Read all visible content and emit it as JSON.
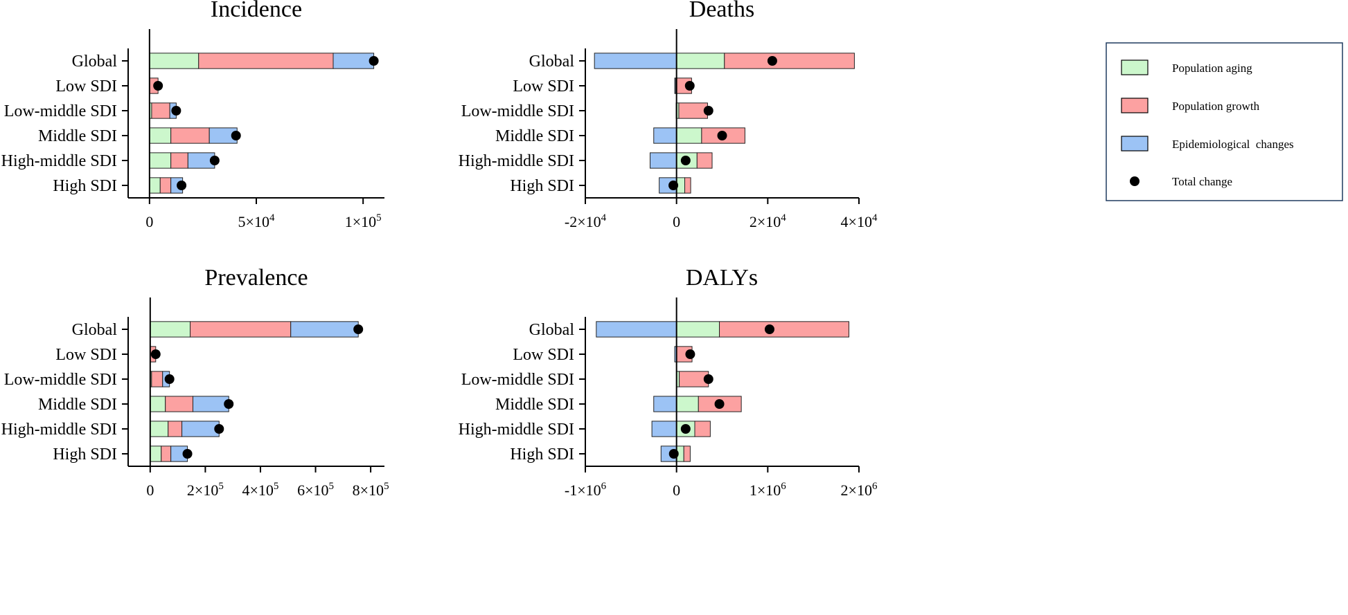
{
  "legend": {
    "items": [
      {
        "label": "Population aging",
        "color": "#ccf7cc",
        "kind": "box"
      },
      {
        "label": "Population growth",
        "color": "#fca1a1",
        "kind": "box"
      },
      {
        "label": "Epidemiological  changes",
        "color": "#9cc3f5",
        "kind": "box"
      },
      {
        "label": "Total change",
        "color": "#000000",
        "kind": "dot"
      }
    ]
  },
  "chart_data": [
    {
      "type": "bar",
      "stacked": true,
      "orientation": "horizontal",
      "title": "Incidence",
      "categories": [
        "Global",
        "Low SDI",
        "Low-middle SDI",
        "Middle SDI",
        "High-middle SDI",
        "High SDI"
      ],
      "series": [
        {
          "name": "Population aging",
          "values": [
            23000,
            0,
            1000,
            10000,
            10000,
            5000
          ]
        },
        {
          "name": "Population growth",
          "values": [
            63000,
            4000,
            8500,
            18000,
            8000,
            5000
          ]
        },
        {
          "name": "Epidemiological  changes",
          "values": [
            19000,
            0,
            3000,
            13000,
            12500,
            5500
          ]
        }
      ],
      "total": [
        105000,
        4000,
        12500,
        40500,
        30500,
        15000
      ],
      "xlim": [
        -10000,
        110000
      ],
      "ticks": [
        {
          "value": 0,
          "base": "0",
          "exp": ""
        },
        {
          "value": 50000,
          "base": "5×10",
          "exp": "4"
        },
        {
          "value": 100000,
          "base": "1×10",
          "exp": "5"
        }
      ]
    },
    {
      "type": "bar",
      "stacked": true,
      "orientation": "horizontal",
      "title": "Deaths",
      "categories": [
        "Global",
        "Low SDI",
        "Low-middle SDI",
        "Middle SDI",
        "High-middle SDI",
        "High SDI"
      ],
      "series": [
        {
          "name": "Population aging",
          "values": [
            10500,
            -200,
            500,
            5500,
            4500,
            1800
          ]
        },
        {
          "name": "Population growth",
          "values": [
            28500,
            3300,
            6300,
            9500,
            3300,
            1300
          ]
        },
        {
          "name": "Epidemiological  changes",
          "values": [
            -18000,
            -200,
            -100,
            -5000,
            -5800,
            -3800
          ]
        }
      ],
      "total": [
        21000,
        2900,
        7000,
        10000,
        2000,
        -700
      ],
      "xlim": [
        -20000,
        40000
      ],
      "ticks": [
        {
          "value": -20000,
          "base": "-2×10",
          "exp": "4"
        },
        {
          "value": 0,
          "base": "0",
          "exp": ""
        },
        {
          "value": 20000,
          "base": "2×10",
          "exp": "4"
        },
        {
          "value": 40000,
          "base": "4×10",
          "exp": "4"
        }
      ]
    },
    {
      "type": "bar",
      "stacked": true,
      "orientation": "horizontal",
      "title": "Prevalence",
      "categories": [
        "Global",
        "Low SDI",
        "Low-middle SDI",
        "Middle SDI",
        "High-middle SDI",
        "High SDI"
      ],
      "series": [
        {
          "name": "Population aging",
          "values": [
            145000,
            0,
            5000,
            55000,
            65000,
            40000
          ]
        },
        {
          "name": "Population growth",
          "values": [
            365000,
            20000,
            40000,
            100000,
            50000,
            35000
          ]
        },
        {
          "name": "Epidemiological  changes",
          "values": [
            245000,
            0,
            25000,
            130000,
            135000,
            60000
          ]
        }
      ],
      "total": [
        755000,
        20000,
        70000,
        285000,
        250000,
        135000
      ],
      "xlim": [
        -80000,
        850000
      ],
      "ticks": [
        {
          "value": 0,
          "base": "0",
          "exp": ""
        },
        {
          "value": 200000,
          "base": "2×10",
          "exp": "5"
        },
        {
          "value": 400000,
          "base": "4×10",
          "exp": "5"
        },
        {
          "value": 600000,
          "base": "6×10",
          "exp": "5"
        },
        {
          "value": 800000,
          "base": "8×10",
          "exp": "5"
        }
      ]
    },
    {
      "type": "bar",
      "stacked": true,
      "orientation": "horizontal",
      "title": "DALYs",
      "categories": [
        "Global",
        "Low SDI",
        "Low-middle SDI",
        "Middle SDI",
        "High-middle SDI",
        "High SDI"
      ],
      "series": [
        {
          "name": "Population aging",
          "values": [
            470000,
            0,
            30000,
            240000,
            200000,
            80000
          ]
        },
        {
          "name": "Population growth",
          "values": [
            1420000,
            170000,
            320000,
            470000,
            170000,
            70000
          ]
        },
        {
          "name": "Epidemiological  changes",
          "values": [
            -880000,
            -20000,
            0,
            -250000,
            -270000,
            -170000
          ]
        }
      ],
      "total": [
        1020000,
        150000,
        350000,
        470000,
        100000,
        -30000
      ],
      "xlim": [
        -1000000,
        2000000
      ],
      "ticks": [
        {
          "value": -1000000,
          "base": "-1×10",
          "exp": "6"
        },
        {
          "value": 0,
          "base": "0",
          "exp": ""
        },
        {
          "value": 1000000,
          "base": "1×10",
          "exp": "6"
        },
        {
          "value": 2000000,
          "base": "2×10",
          "exp": "6"
        }
      ]
    }
  ]
}
